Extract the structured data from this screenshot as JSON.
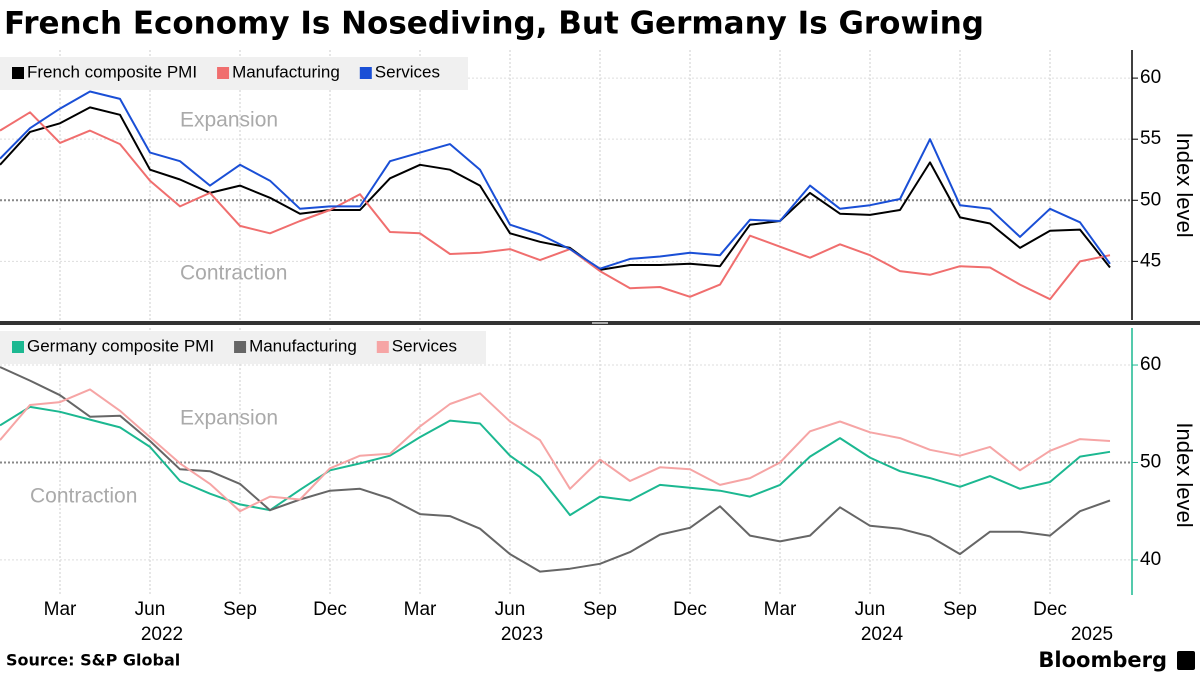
{
  "title": "French Economy Is Nosediving, But Germany Is Growing",
  "source": "Source: S&P Global",
  "brand": "Bloomberg",
  "chart_data": [
    {
      "type": "line",
      "y_label": "Index level",
      "legend": "upper left",
      "grid": true,
      "reference_line": 50,
      "annotations": [
        "Expansion",
        "Contraction"
      ],
      "xlim": [
        "2022-01",
        "2025-02"
      ],
      "ylim": [
        40.2,
        62.3
      ],
      "yticks": [
        45,
        50,
        55,
        60
      ],
      "x": [
        "2022-01",
        "2022-02",
        "2022-03",
        "2022-04",
        "2022-05",
        "2022-06",
        "2022-07",
        "2022-08",
        "2022-09",
        "2022-10",
        "2022-11",
        "2022-12",
        "2023-01",
        "2023-02",
        "2023-03",
        "2023-04",
        "2023-05",
        "2023-06",
        "2023-07",
        "2023-08",
        "2023-09",
        "2023-10",
        "2023-11",
        "2023-12",
        "2024-01",
        "2024-02",
        "2024-03",
        "2024-04",
        "2024-05",
        "2024-06",
        "2024-07",
        "2024-08",
        "2024-09",
        "2024-10",
        "2024-11",
        "2024-12",
        "2025-01",
        "2025-02"
      ],
      "series": [
        {
          "name": "French composite PMI",
          "color": "#000000",
          "values": [
            52.9,
            55.6,
            56.3,
            57.6,
            57.0,
            52.5,
            51.7,
            50.6,
            51.2,
            50.2,
            48.9,
            49.2,
            49.2,
            51.8,
            52.9,
            52.5,
            51.2,
            47.3,
            46.6,
            46.1,
            44.3,
            44.7,
            44.7,
            44.8,
            44.6,
            48.0,
            48.3,
            50.6,
            48.9,
            48.8,
            49.2,
            53.1,
            48.6,
            48.1,
            46.1,
            47.5,
            47.6,
            44.5
          ]
        },
        {
          "name": "Manufacturing",
          "color": "#f06e6e",
          "values": [
            55.7,
            57.2,
            54.7,
            55.7,
            54.6,
            51.6,
            49.5,
            50.6,
            47.9,
            47.3,
            48.3,
            49.2,
            50.5,
            47.4,
            47.3,
            45.6,
            45.7,
            46.0,
            45.1,
            46.0,
            44.2,
            42.8,
            42.9,
            42.1,
            43.1,
            47.1,
            46.2,
            45.3,
            46.4,
            45.5,
            44.2,
            43.9,
            44.6,
            44.5,
            43.1,
            41.9,
            45.0,
            45.5
          ]
        },
        {
          "name": "Services",
          "color": "#1a4fd6",
          "values": [
            53.4,
            55.9,
            57.5,
            58.9,
            58.3,
            53.9,
            53.2,
            51.2,
            52.9,
            51.6,
            49.3,
            49.5,
            49.5,
            53.2,
            53.9,
            54.6,
            52.5,
            48.0,
            47.2,
            46.0,
            44.4,
            45.2,
            45.4,
            45.7,
            45.5,
            48.4,
            48.3,
            51.2,
            49.3,
            49.6,
            50.1,
            55.0,
            49.6,
            49.3,
            47.0,
            49.3,
            48.2,
            44.8
          ]
        }
      ]
    },
    {
      "type": "line",
      "y_label": "Index level",
      "legend": "upper left",
      "grid": true,
      "reference_line": 50,
      "annotations": [
        "Expansion",
        "Contraction"
      ],
      "xlim": [
        "2022-01",
        "2025-02"
      ],
      "ylim": [
        36.4,
        63.8
      ],
      "yticks": [
        40,
        50,
        60
      ],
      "x": [
        "2022-01",
        "2022-02",
        "2022-03",
        "2022-04",
        "2022-05",
        "2022-06",
        "2022-07",
        "2022-08",
        "2022-09",
        "2022-10",
        "2022-11",
        "2022-12",
        "2023-01",
        "2023-02",
        "2023-03",
        "2023-04",
        "2023-05",
        "2023-06",
        "2023-07",
        "2023-08",
        "2023-09",
        "2023-10",
        "2023-11",
        "2023-12",
        "2024-01",
        "2024-02",
        "2024-03",
        "2024-04",
        "2024-05",
        "2024-06",
        "2024-07",
        "2024-08",
        "2024-09",
        "2024-10",
        "2024-11",
        "2024-12",
        "2025-01",
        "2025-02"
      ],
      "xticks": [
        {
          "value": "2022-03",
          "label": "Mar"
        },
        {
          "value": "2022-06",
          "label": "Jun"
        },
        {
          "value": "2022-09",
          "label": "Sep"
        },
        {
          "value": "2022-12",
          "label": "Dec"
        },
        {
          "value": "2023-03",
          "label": "Mar"
        },
        {
          "value": "2023-06",
          "label": "Jun"
        },
        {
          "value": "2023-09",
          "label": "Sep"
        },
        {
          "value": "2023-12",
          "label": "Dec"
        },
        {
          "value": "2024-03",
          "label": "Mar"
        },
        {
          "value": "2024-06",
          "label": "Jun"
        },
        {
          "value": "2024-09",
          "label": "Sep"
        },
        {
          "value": "2024-12",
          "label": "Dec"
        }
      ],
      "year_labels": [
        {
          "value": "2022-06",
          "label": "2022"
        },
        {
          "value": "2023-06",
          "label": "2023"
        },
        {
          "value": "2024-06",
          "label": "2024"
        },
        {
          "value": "2025-01",
          "label": "2025"
        }
      ],
      "series": [
        {
          "name": "Germany composite PMI",
          "color": "#1cb891",
          "values": [
            53.8,
            55.7,
            55.2,
            54.4,
            53.6,
            51.6,
            48.1,
            46.8,
            45.7,
            45.1,
            47.2,
            49.2,
            49.9,
            50.7,
            52.6,
            54.3,
            54.0,
            50.7,
            48.5,
            44.6,
            46.5,
            46.1,
            47.7,
            47.4,
            47.1,
            46.5,
            47.7,
            50.6,
            52.5,
            50.5,
            49.1,
            48.4,
            47.5,
            48.6,
            47.3,
            48.0,
            50.6,
            51.1
          ]
        },
        {
          "name": "Manufacturing",
          "color": "#666666",
          "values": [
            59.8,
            58.4,
            56.9,
            54.7,
            54.8,
            52.2,
            49.3,
            49.1,
            47.8,
            45.1,
            46.2,
            47.1,
            47.3,
            46.3,
            44.7,
            44.5,
            43.2,
            40.6,
            38.8,
            39.1,
            39.6,
            40.8,
            42.6,
            43.3,
            45.5,
            42.5,
            41.9,
            42.5,
            45.4,
            43.5,
            43.2,
            42.4,
            40.6,
            42.9,
            42.9,
            42.5,
            45.0,
            46.1
          ]
        },
        {
          "name": "Services",
          "color": "#f6a5a5",
          "values": [
            52.3,
            55.9,
            56.2,
            57.5,
            55.3,
            52.6,
            49.9,
            47.8,
            45.0,
            46.5,
            46.2,
            49.4,
            50.7,
            50.9,
            53.7,
            56.0,
            57.1,
            54.2,
            52.3,
            47.3,
            50.3,
            48.1,
            49.5,
            49.3,
            47.7,
            48.4,
            50.0,
            53.2,
            54.2,
            53.1,
            52.5,
            51.3,
            50.7,
            51.6,
            49.2,
            51.2,
            52.4,
            52.2
          ]
        }
      ]
    }
  ]
}
